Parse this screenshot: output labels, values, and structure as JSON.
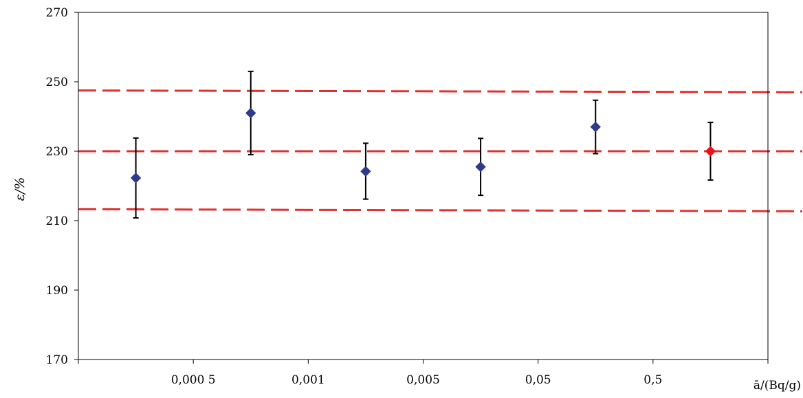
{
  "chart_data": {
    "type": "scatter",
    "ylabel": "ε/%",
    "xlabel": "ā/(Bq/g)",
    "ylim": [
      170,
      270
    ],
    "y_ticks": [
      "170",
      "190",
      "210",
      "230",
      "250",
      "270"
    ],
    "x_tick_labels": [
      "0,000 5",
      "0,001",
      "0,005",
      "0,05",
      "0,5"
    ],
    "grid": false,
    "points": [
      {
        "x": 1,
        "y": 222.3,
        "err_low": 210.8,
        "err_high": 233.8,
        "color": "#2e3a8c"
      },
      {
        "x": 2,
        "y": 241.0,
        "err_low": 229.0,
        "err_high": 253.0,
        "color": "#2e3a8c"
      },
      {
        "x": 3,
        "y": 224.2,
        "err_low": 216.2,
        "err_high": 232.3,
        "color": "#2e3a8c"
      },
      {
        "x": 4,
        "y": 225.5,
        "err_low": 217.3,
        "err_high": 233.7,
        "color": "#2e3a8c"
      },
      {
        "x": 5,
        "y": 237.0,
        "err_low": 229.3,
        "err_high": 244.7,
        "color": "#2e3a8c"
      },
      {
        "x": 6,
        "y": 230.0,
        "err_low": 221.7,
        "err_high": 238.3,
        "color": "#e8141c"
      }
    ],
    "reference_lines": [
      {
        "y_start": 247.5,
        "y_end": 247.0,
        "color": "#e03030",
        "style": "dashed"
      },
      {
        "y_start": 230.0,
        "y_end": 230.0,
        "color": "#e03030",
        "style": "dashed"
      },
      {
        "y_start": 213.3,
        "y_end": 212.7,
        "color": "#e03030",
        "style": "dashed"
      }
    ]
  }
}
